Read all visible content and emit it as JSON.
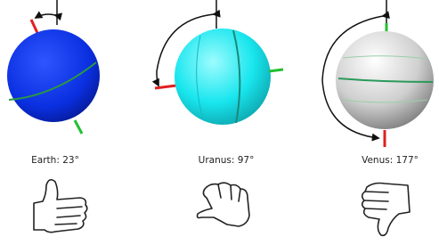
{
  "nodes": [
    {
      "label": "Earth: 23°"
    },
    {
      "label": "Uranus: 97°"
    },
    {
      "label": "Venus: 177°"
    }
  ]
}
